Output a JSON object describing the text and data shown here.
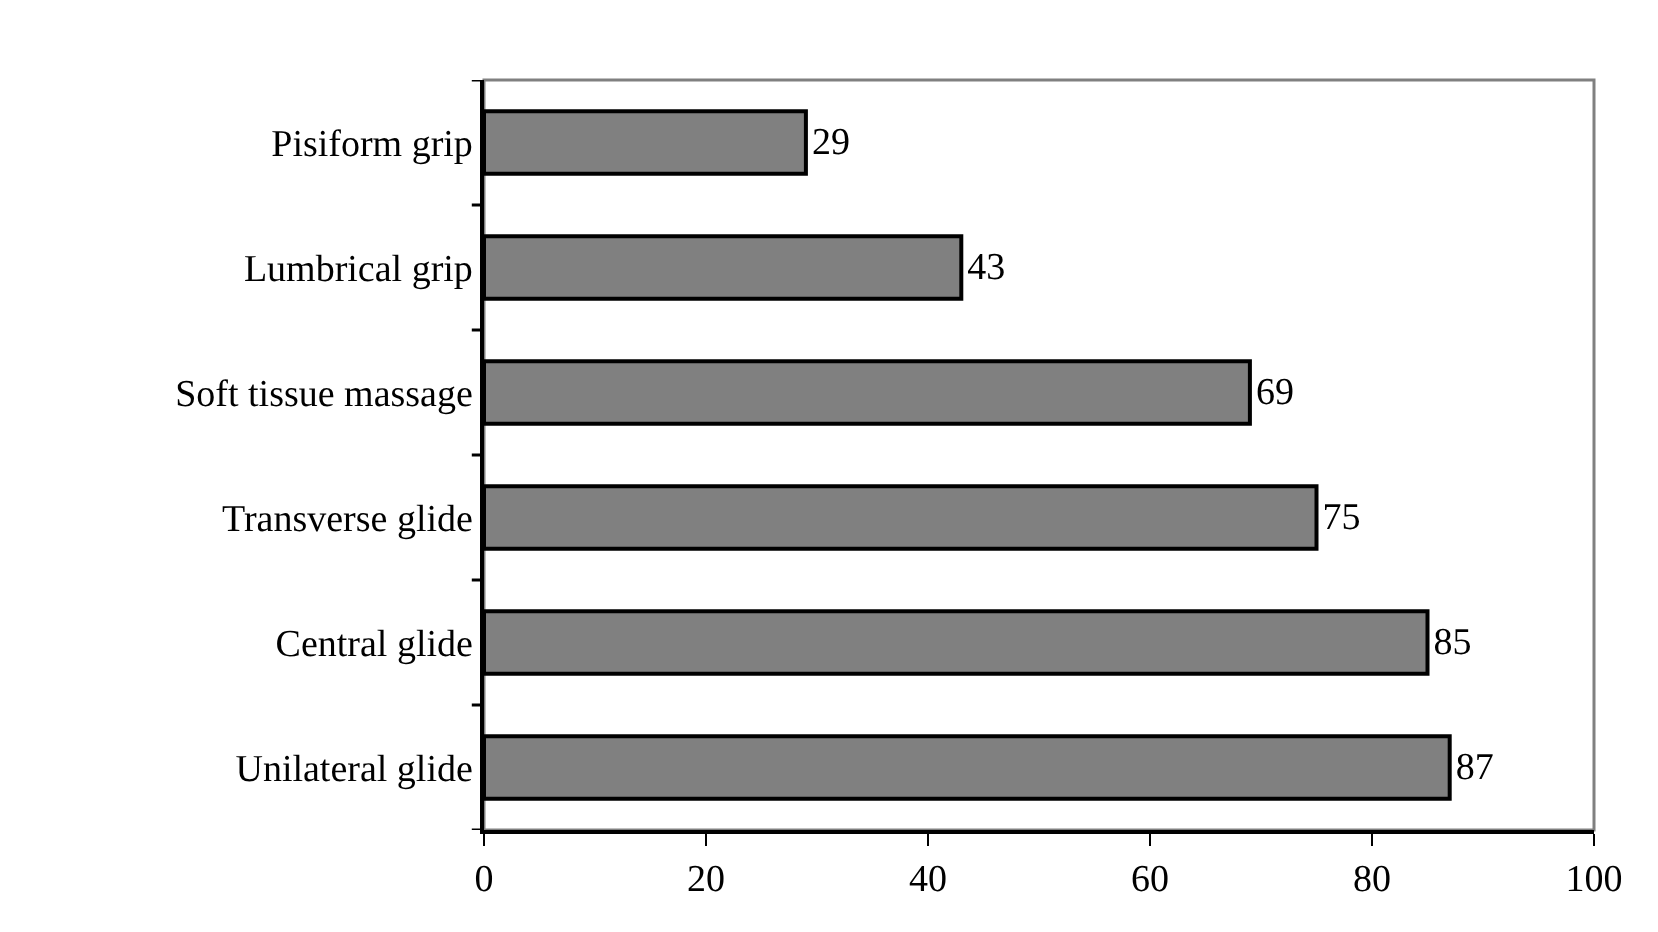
{
  "chart_data": {
    "type": "bar",
    "orientation": "horizontal",
    "categories": [
      "Pisiform grip",
      "Lumbrical grip",
      "Soft tissue massage",
      "Transverse glide",
      "Central glide",
      "Unilateral glide"
    ],
    "values": [
      29,
      43,
      69,
      75,
      85,
      87
    ],
    "color": "#808080",
    "xlim": [
      0,
      100
    ],
    "xticks": [
      0,
      20,
      40,
      60,
      80,
      100
    ],
    "grid": false,
    "legend": false,
    "data_labels": true
  }
}
